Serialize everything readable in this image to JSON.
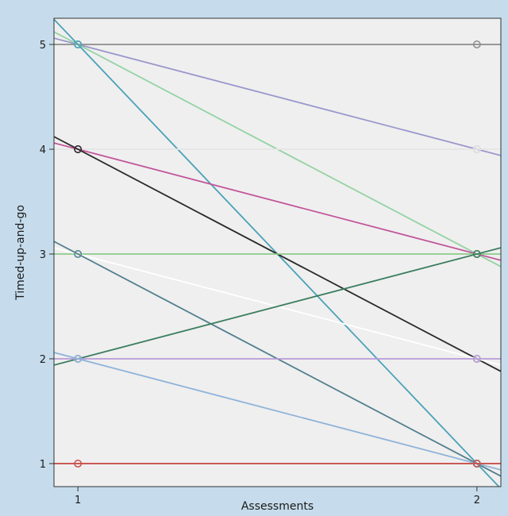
{
  "chart_data": {
    "type": "line",
    "title": "",
    "xlabel": "Assessments",
    "ylabel": "Timed-up-and-go",
    "x_ticks": [
      1,
      2
    ],
    "y_ticks": [
      1,
      2,
      3,
      4,
      5
    ],
    "xlim": [
      0.94,
      2.06
    ],
    "ylim": [
      0.78,
      5.25
    ],
    "grid": false,
    "legend": "none",
    "plot_background": "#efefef",
    "series": [
      {
        "x": [
          1,
          2
        ],
        "y": [
          5,
          5
        ],
        "color": "#8c8c8c"
      },
      {
        "x": [
          1,
          2
        ],
        "y": [
          5,
          4
        ],
        "color": "#9a97cc"
      },
      {
        "x": [
          1,
          2
        ],
        "y": [
          5,
          3
        ],
        "color": "#93d3a3"
      },
      {
        "x": [
          1,
          2
        ],
        "y": [
          5,
          1
        ],
        "color": "#4aa1b8"
      },
      {
        "x": [
          1,
          2
        ],
        "y": [
          4,
          4
        ],
        "color": "#e4e4e4"
      },
      {
        "x": [
          1,
          2
        ],
        "y": [
          4,
          3
        ],
        "color": "#c2569a"
      },
      {
        "x": [
          1,
          2
        ],
        "y": [
          4,
          2
        ],
        "color": "#2a2a2a"
      },
      {
        "x": [
          1,
          2
        ],
        "y": [
          3,
          3
        ],
        "color": "#8bcc8a"
      },
      {
        "x": [
          1,
          2
        ],
        "y": [
          3,
          2
        ],
        "color": "#ffffff"
      },
      {
        "x": [
          1,
          2
        ],
        "y": [
          3,
          1
        ],
        "color": "#527f8e"
      },
      {
        "x": [
          1,
          2
        ],
        "y": [
          2,
          3
        ],
        "color": "#3b7d5f"
      },
      {
        "x": [
          1,
          2
        ],
        "y": [
          2,
          2
        ],
        "color": "#b79ad8"
      },
      {
        "x": [
          1,
          2
        ],
        "y": [
          2,
          1
        ],
        "color": "#8fb3d9"
      },
      {
        "x": [
          1,
          2
        ],
        "y": [
          1,
          1
        ],
        "color": "#c9504a"
      }
    ]
  }
}
